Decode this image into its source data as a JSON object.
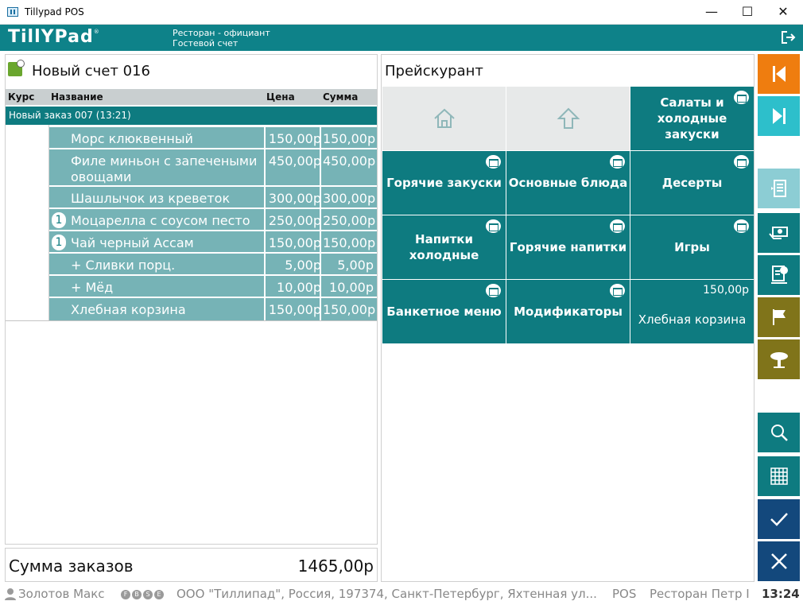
{
  "window": {
    "title": "Tillypad POS",
    "minimize": "—",
    "maximize": "☐",
    "close": "✕"
  },
  "header": {
    "logo": "TillYPad",
    "logo_mark": "®",
    "role": "Ресторан - официант",
    "guest": "Гостевой счет"
  },
  "order": {
    "title": "Новый счет 016",
    "columns": {
      "course": "Курс",
      "name": "Название",
      "price": "Цена",
      "sum": "Сумма"
    },
    "group": "Новый заказ 007 (13:21)",
    "rows": [
      {
        "name": "Морс клюквенный",
        "price": "150,00р",
        "sum": "150,00р",
        "badge": ""
      },
      {
        "name": "Филе миньон с запечеными овощами",
        "price": "450,00р",
        "sum": "450,00р",
        "badge": ""
      },
      {
        "name": "Шашлычок из креветок",
        "price": "300,00р",
        "sum": "300,00р",
        "badge": ""
      },
      {
        "name": "Моцарелла с соусом песто",
        "price": "250,00р",
        "sum": "250,00р",
        "badge": "1"
      },
      {
        "name": "Чай черный Ассам",
        "price": "150,00р",
        "sum": "150,00р",
        "badge": "1"
      },
      {
        "name": "+ Сливки порц.",
        "price": "5,00р",
        "sum": "5,00р",
        "badge": ""
      },
      {
        "name": "+ Мёд",
        "price": "10,00р",
        "sum": "10,00р",
        "badge": ""
      },
      {
        "name": "Хлебная корзина",
        "price": "150,00р",
        "sum": "150,00р",
        "badge": ""
      }
    ],
    "total_label": "Сумма заказов",
    "total_value": "1465,00р"
  },
  "pricelist": {
    "title": "Прейскурант",
    "tiles": [
      {
        "label": "",
        "type": "home"
      },
      {
        "label": "",
        "type": "up"
      },
      {
        "label": "Салаты и холодные закуски",
        "type": "folder"
      },
      {
        "label": "Горячие закуски",
        "type": "folder"
      },
      {
        "label": "Основные блюда",
        "type": "folder"
      },
      {
        "label": "Десерты",
        "type": "folder"
      },
      {
        "label": "Напитки холодные",
        "type": "folder"
      },
      {
        "label": "Горячие напитки",
        "type": "folder"
      },
      {
        "label": "Игры",
        "type": "folder"
      },
      {
        "label": "Банкетное меню",
        "type": "folder"
      },
      {
        "label": "Модификаторы",
        "type": "folder"
      },
      {
        "label": "Хлебная корзина",
        "type": "item",
        "price": "150,00р"
      }
    ]
  },
  "colors": {
    "teal": "#0e8289",
    "teal_light": "#76b3b6",
    "orange": "#ef7d0f",
    "cyan": "#2dbfcb",
    "olive": "#80741a",
    "navy": "#13487c"
  },
  "status": {
    "user": "Золотов Макс",
    "flags": [
      "F",
      "B",
      "S",
      "E"
    ],
    "company": "ООО \"Тиллипад\", Россия, 197374, Санкт-Петербург, Яхтенная ул...",
    "pos": "POS",
    "restaurant": "Ресторан Петр I",
    "time": "13:24"
  }
}
